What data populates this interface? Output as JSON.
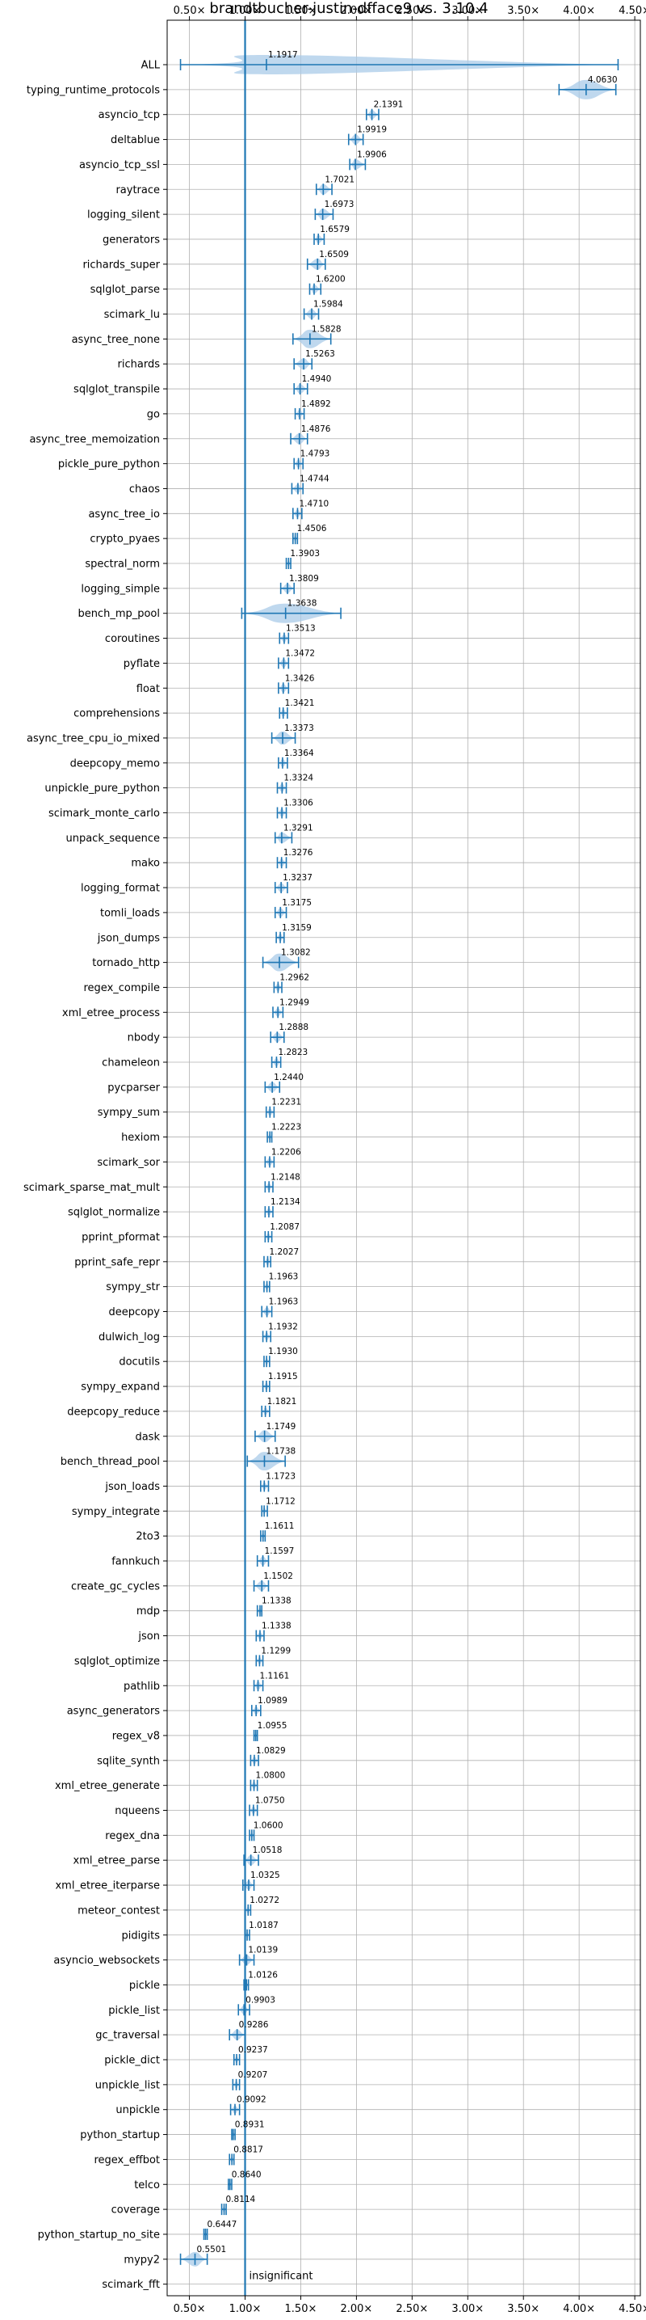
{
  "chart_data": {
    "type": "violin",
    "title": "brandtbucher-justin-dfface9 vs. 3.10.4",
    "xlim": [
      0.3,
      4.55
    ],
    "xticks": [
      0.5,
      1.0,
      1.5,
      2.0,
      2.5,
      3.0,
      3.5,
      4.0,
      4.5
    ],
    "xtick_labels": [
      "0.50×",
      "1.00×",
      "1.50×",
      "2.00×",
      "2.50×",
      "3.00×",
      "3.50×",
      "4.00×",
      "4.50×"
    ],
    "reference_line_x": 1.0,
    "grid": true,
    "colors": {
      "violin": "#a9cbe8",
      "line": "#1f77b4"
    },
    "rows": [
      {
        "name": "ALL",
        "label": "1.1917",
        "value": 1.1917,
        "min": 0.42,
        "max": 4.35
      },
      {
        "name": "typing_runtime_protocols",
        "label": "4.0630",
        "value": 4.063,
        "min": 3.82,
        "max": 4.33
      },
      {
        "name": "asyncio_tcp",
        "label": "2.1391",
        "value": 2.1391,
        "min": 2.09,
        "max": 2.2
      },
      {
        "name": "deltablue",
        "label": "1.9919",
        "value": 1.9919,
        "min": 1.93,
        "max": 2.06
      },
      {
        "name": "asyncio_tcp_ssl",
        "label": "1.9906",
        "value": 1.9906,
        "min": 1.94,
        "max": 2.08
      },
      {
        "name": "raytrace",
        "label": "1.7021",
        "value": 1.7021,
        "min": 1.64,
        "max": 1.78
      },
      {
        "name": "logging_silent",
        "label": "1.6973",
        "value": 1.6973,
        "min": 1.63,
        "max": 1.79
      },
      {
        "name": "generators",
        "label": "1.6579",
        "value": 1.6579,
        "min": 1.62,
        "max": 1.71
      },
      {
        "name": "richards_super",
        "label": "1.6509",
        "value": 1.6509,
        "min": 1.56,
        "max": 1.72
      },
      {
        "name": "sqlglot_parse",
        "label": "1.6200",
        "value": 1.62,
        "min": 1.58,
        "max": 1.68
      },
      {
        "name": "scimark_lu",
        "label": "1.5984",
        "value": 1.5984,
        "min": 1.53,
        "max": 1.66
      },
      {
        "name": "async_tree_none",
        "label": "1.5828",
        "value": 1.5828,
        "min": 1.43,
        "max": 1.77
      },
      {
        "name": "richards",
        "label": "1.5263",
        "value": 1.5263,
        "min": 1.44,
        "max": 1.6
      },
      {
        "name": "sqlglot_transpile",
        "label": "1.4940",
        "value": 1.494,
        "min": 1.44,
        "max": 1.56
      },
      {
        "name": "go",
        "label": "1.4892",
        "value": 1.4892,
        "min": 1.45,
        "max": 1.53
      },
      {
        "name": "async_tree_memoization",
        "label": "1.4876",
        "value": 1.4876,
        "min": 1.41,
        "max": 1.56
      },
      {
        "name": "pickle_pure_python",
        "label": "1.4793",
        "value": 1.4793,
        "min": 1.44,
        "max": 1.52
      },
      {
        "name": "chaos",
        "label": "1.4744",
        "value": 1.4744,
        "min": 1.42,
        "max": 1.52
      },
      {
        "name": "async_tree_io",
        "label": "1.4710",
        "value": 1.471,
        "min": 1.43,
        "max": 1.51
      },
      {
        "name": "crypto_pyaes",
        "label": "1.4506",
        "value": 1.4506,
        "min": 1.43,
        "max": 1.47
      },
      {
        "name": "spectral_norm",
        "label": "1.3903",
        "value": 1.3903,
        "min": 1.37,
        "max": 1.41
      },
      {
        "name": "logging_simple",
        "label": "1.3809",
        "value": 1.3809,
        "min": 1.32,
        "max": 1.44
      },
      {
        "name": "bench_mp_pool",
        "label": "1.3638",
        "value": 1.3638,
        "min": 0.97,
        "max": 1.86
      },
      {
        "name": "coroutines",
        "label": "1.3513",
        "value": 1.3513,
        "min": 1.31,
        "max": 1.39
      },
      {
        "name": "pyflate",
        "label": "1.3472",
        "value": 1.3472,
        "min": 1.3,
        "max": 1.39
      },
      {
        "name": "float",
        "label": "1.3426",
        "value": 1.3426,
        "min": 1.3,
        "max": 1.39
      },
      {
        "name": "comprehensions",
        "label": "1.3421",
        "value": 1.3421,
        "min": 1.31,
        "max": 1.38
      },
      {
        "name": "async_tree_cpu_io_mixed",
        "label": "1.3373",
        "value": 1.3373,
        "min": 1.24,
        "max": 1.45
      },
      {
        "name": "deepcopy_memo",
        "label": "1.3364",
        "value": 1.3364,
        "min": 1.3,
        "max": 1.38
      },
      {
        "name": "unpickle_pure_python",
        "label": "1.3324",
        "value": 1.3324,
        "min": 1.29,
        "max": 1.37
      },
      {
        "name": "scimark_monte_carlo",
        "label": "1.3306",
        "value": 1.3306,
        "min": 1.29,
        "max": 1.37
      },
      {
        "name": "unpack_sequence",
        "label": "1.3291",
        "value": 1.3291,
        "min": 1.27,
        "max": 1.42
      },
      {
        "name": "mako",
        "label": "1.3276",
        "value": 1.3276,
        "min": 1.29,
        "max": 1.37
      },
      {
        "name": "logging_format",
        "label": "1.3237",
        "value": 1.3237,
        "min": 1.27,
        "max": 1.38
      },
      {
        "name": "tomli_loads",
        "label": "1.3175",
        "value": 1.3175,
        "min": 1.27,
        "max": 1.37
      },
      {
        "name": "json_dumps",
        "label": "1.3159",
        "value": 1.3159,
        "min": 1.28,
        "max": 1.35
      },
      {
        "name": "tornado_http",
        "label": "1.3082",
        "value": 1.3082,
        "min": 1.16,
        "max": 1.48
      },
      {
        "name": "regex_compile",
        "label": "1.2962",
        "value": 1.2962,
        "min": 1.26,
        "max": 1.33
      },
      {
        "name": "xml_etree_process",
        "label": "1.2949",
        "value": 1.2949,
        "min": 1.25,
        "max": 1.34
      },
      {
        "name": "nbody",
        "label": "1.2888",
        "value": 1.2888,
        "min": 1.23,
        "max": 1.35
      },
      {
        "name": "chameleon",
        "label": "1.2823",
        "value": 1.2823,
        "min": 1.24,
        "max": 1.32
      },
      {
        "name": "pycparser",
        "label": "1.2440",
        "value": 1.244,
        "min": 1.18,
        "max": 1.31
      },
      {
        "name": "sympy_sum",
        "label": "1.2231",
        "value": 1.2231,
        "min": 1.19,
        "max": 1.26
      },
      {
        "name": "hexiom",
        "label": "1.2223",
        "value": 1.2223,
        "min": 1.2,
        "max": 1.24
      },
      {
        "name": "scimark_sor",
        "label": "1.2206",
        "value": 1.2206,
        "min": 1.18,
        "max": 1.26
      },
      {
        "name": "scimark_sparse_mat_mult",
        "label": "1.2148",
        "value": 1.2148,
        "min": 1.18,
        "max": 1.25
      },
      {
        "name": "sqlglot_normalize",
        "label": "1.2134",
        "value": 1.2134,
        "min": 1.18,
        "max": 1.25
      },
      {
        "name": "pprint_pformat",
        "label": "1.2087",
        "value": 1.2087,
        "min": 1.18,
        "max": 1.24
      },
      {
        "name": "pprint_safe_repr",
        "label": "1.2027",
        "value": 1.2027,
        "min": 1.17,
        "max": 1.23
      },
      {
        "name": "sympy_str",
        "label": "1.1963",
        "value": 1.1963,
        "min": 1.17,
        "max": 1.22
      },
      {
        "name": "deepcopy",
        "label": "1.1963",
        "value": 1.1963,
        "min": 1.15,
        "max": 1.24
      },
      {
        "name": "dulwich_log",
        "label": "1.1932",
        "value": 1.1932,
        "min": 1.16,
        "max": 1.23
      },
      {
        "name": "docutils",
        "label": "1.1930",
        "value": 1.193,
        "min": 1.17,
        "max": 1.22
      },
      {
        "name": "sympy_expand",
        "label": "1.1915",
        "value": 1.1915,
        "min": 1.16,
        "max": 1.22
      },
      {
        "name": "deepcopy_reduce",
        "label": "1.1821",
        "value": 1.1821,
        "min": 1.15,
        "max": 1.22
      },
      {
        "name": "dask",
        "label": "1.1749",
        "value": 1.1749,
        "min": 1.09,
        "max": 1.27
      },
      {
        "name": "bench_thread_pool",
        "label": "1.1738",
        "value": 1.1738,
        "min": 1.02,
        "max": 1.36
      },
      {
        "name": "json_loads",
        "label": "1.1723",
        "value": 1.1723,
        "min": 1.14,
        "max": 1.21
      },
      {
        "name": "sympy_integrate",
        "label": "1.1712",
        "value": 1.1712,
        "min": 1.15,
        "max": 1.2
      },
      {
        "name": "2to3",
        "label": "1.1611",
        "value": 1.1611,
        "min": 1.14,
        "max": 1.18
      },
      {
        "name": "fannkuch",
        "label": "1.1597",
        "value": 1.1597,
        "min": 1.11,
        "max": 1.21
      },
      {
        "name": "create_gc_cycles",
        "label": "1.1502",
        "value": 1.1502,
        "min": 1.08,
        "max": 1.21
      },
      {
        "name": "mdp",
        "label": "1.1338",
        "value": 1.1338,
        "min": 1.11,
        "max": 1.15
      },
      {
        "name": "json",
        "label": "1.1338",
        "value": 1.1338,
        "min": 1.1,
        "max": 1.17
      },
      {
        "name": "sqlglot_optimize",
        "label": "1.1299",
        "value": 1.1299,
        "min": 1.1,
        "max": 1.16
      },
      {
        "name": "pathlib",
        "label": "1.1161",
        "value": 1.1161,
        "min": 1.08,
        "max": 1.16
      },
      {
        "name": "async_generators",
        "label": "1.0989",
        "value": 1.0989,
        "min": 1.06,
        "max": 1.14
      },
      {
        "name": "regex_v8",
        "label": "1.0955",
        "value": 1.0955,
        "min": 1.08,
        "max": 1.11
      },
      {
        "name": "sqlite_synth",
        "label": "1.0829",
        "value": 1.0829,
        "min": 1.05,
        "max": 1.12
      },
      {
        "name": "xml_etree_generate",
        "label": "1.0800",
        "value": 1.08,
        "min": 1.05,
        "max": 1.11
      },
      {
        "name": "nqueens",
        "label": "1.0750",
        "value": 1.075,
        "min": 1.04,
        "max": 1.11
      },
      {
        "name": "regex_dna",
        "label": "1.0600",
        "value": 1.06,
        "min": 1.04,
        "max": 1.08
      },
      {
        "name": "xml_etree_parse",
        "label": "1.0518",
        "value": 1.0518,
        "min": 0.99,
        "max": 1.12
      },
      {
        "name": "xml_etree_iterparse",
        "label": "1.0325",
        "value": 1.0325,
        "min": 0.98,
        "max": 1.08
      },
      {
        "name": "meteor_contest",
        "label": "1.0272",
        "value": 1.0272,
        "min": 1.0,
        "max": 1.05
      },
      {
        "name": "pidigits",
        "label": "1.0187",
        "value": 1.0187,
        "min": 1.0,
        "max": 1.04
      },
      {
        "name": "asyncio_websockets",
        "label": "1.0139",
        "value": 1.0139,
        "min": 0.95,
        "max": 1.08
      },
      {
        "name": "pickle",
        "label": "1.0126",
        "value": 1.0126,
        "min": 0.99,
        "max": 1.03
      },
      {
        "name": "pickle_list",
        "label": "0.9903",
        "value": 0.9903,
        "min": 0.94,
        "max": 1.04
      },
      {
        "name": "gc_traversal",
        "label": "0.9286",
        "value": 0.9286,
        "min": 0.86,
        "max": 1.0
      },
      {
        "name": "pickle_dict",
        "label": "0.9237",
        "value": 0.9237,
        "min": 0.9,
        "max": 0.95
      },
      {
        "name": "unpickle_list",
        "label": "0.9207",
        "value": 0.9207,
        "min": 0.89,
        "max": 0.95
      },
      {
        "name": "unpickle",
        "label": "0.9092",
        "value": 0.9092,
        "min": 0.87,
        "max": 0.95
      },
      {
        "name": "python_startup",
        "label": "0.8931",
        "value": 0.8931,
        "min": 0.88,
        "max": 0.91
      },
      {
        "name": "regex_effbot",
        "label": "0.8817",
        "value": 0.8817,
        "min": 0.86,
        "max": 0.9
      },
      {
        "name": "telco",
        "label": "0.8640",
        "value": 0.864,
        "min": 0.85,
        "max": 0.88
      },
      {
        "name": "coverage",
        "label": "0.8114",
        "value": 0.8114,
        "min": 0.79,
        "max": 0.83
      },
      {
        "name": "python_startup_no_site",
        "label": "0.6447",
        "value": 0.6447,
        "min": 0.63,
        "max": 0.66
      },
      {
        "name": "mypy2",
        "label": "0.5501",
        "value": 0.5501,
        "min": 0.42,
        "max": 0.66
      },
      {
        "name": "scimark_fft",
        "label": "insignificant",
        "value": null,
        "min": null,
        "max": null
      }
    ]
  }
}
